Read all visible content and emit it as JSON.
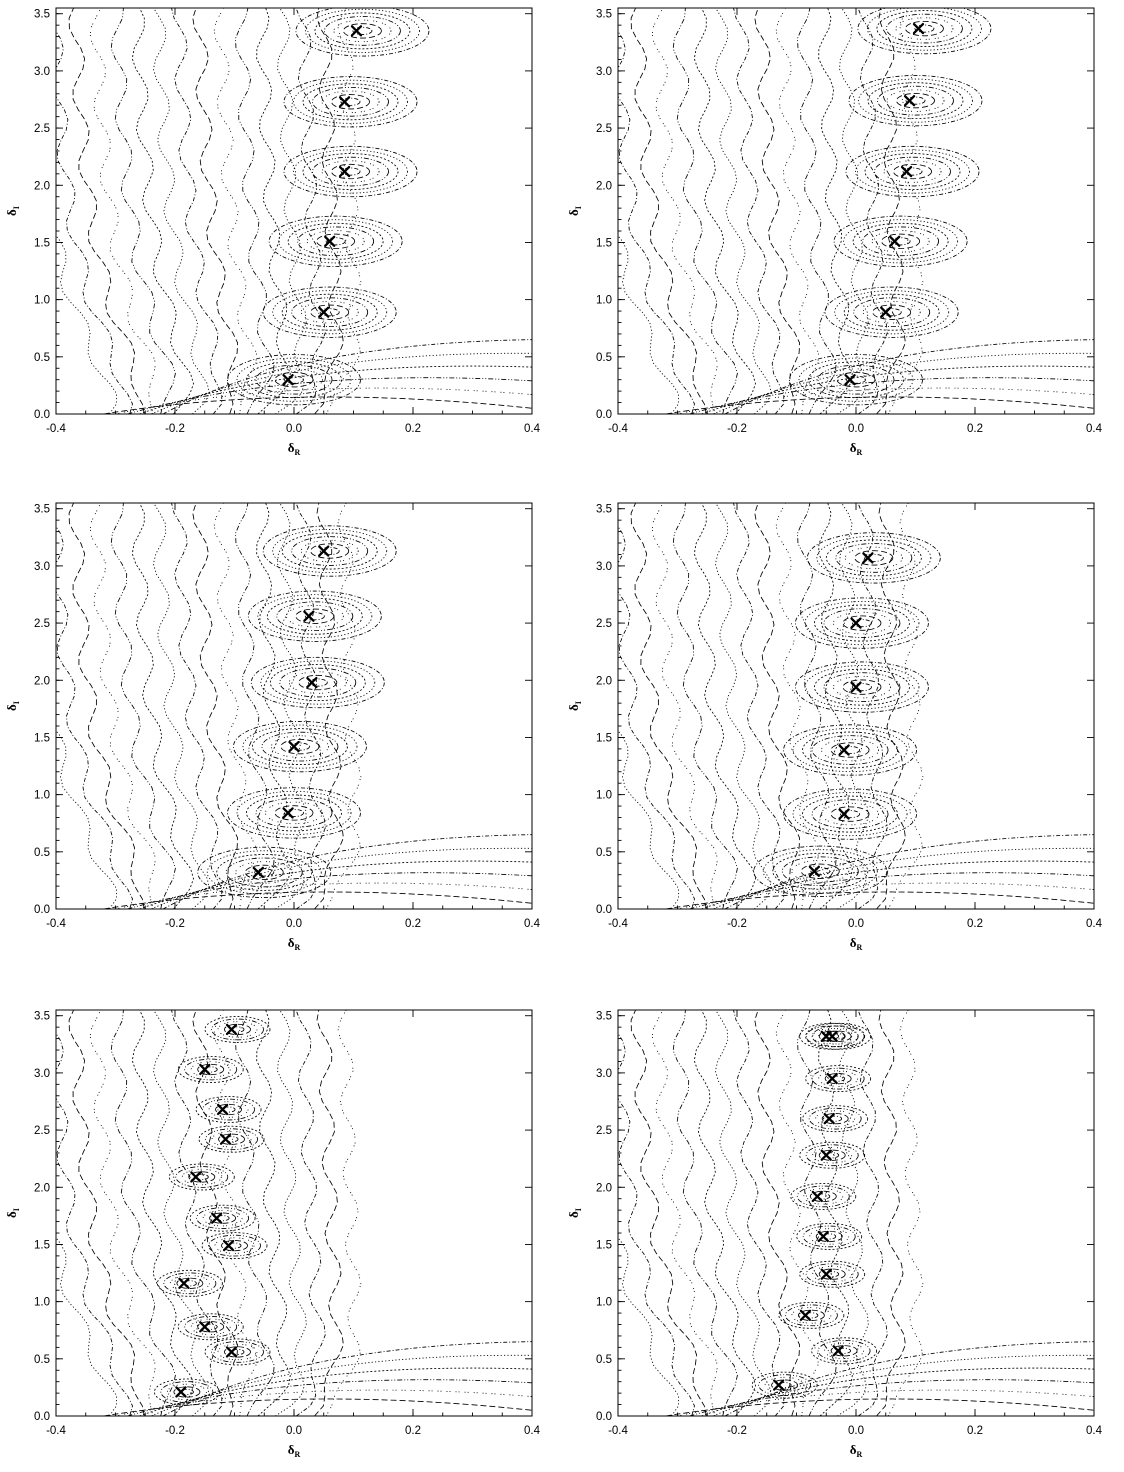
{
  "chart_data": [
    {
      "type": "scatter",
      "title": "",
      "xlabel": "δ",
      "xlabel_sub": "R",
      "ylabel": "δ",
      "ylabel_sub": "I",
      "xlim": [
        -0.4,
        0.4
      ],
      "ylim": [
        0.0,
        3.55
      ],
      "xticks": [
        "-0.4",
        "-0.2",
        "0.0",
        "0.2",
        "0.4"
      ],
      "yticks": [
        "0.0",
        "0.5",
        "1.0",
        "1.5",
        "2.0",
        "2.5",
        "3.0",
        "3.5"
      ],
      "contour_background": true,
      "x": [
        -0.01,
        0.05,
        0.06,
        0.085,
        0.085,
        0.105
      ],
      "y": [
        0.3,
        0.89,
        1.51,
        2.12,
        2.73,
        3.35
      ]
    },
    {
      "type": "scatter",
      "title": "",
      "xlabel": "δ",
      "xlabel_sub": "R",
      "ylabel": "δ",
      "ylabel_sub": "I",
      "xlim": [
        -0.4,
        0.4
      ],
      "ylim": [
        0.0,
        3.55
      ],
      "xticks": [
        "-0.4",
        "-0.2",
        "0.0",
        "0.2",
        "0.4"
      ],
      "yticks": [
        "0.0",
        "0.5",
        "1.0",
        "1.5",
        "2.0",
        "2.5",
        "3.0",
        "3.5"
      ],
      "contour_background": true,
      "x": [
        -0.01,
        0.05,
        0.065,
        0.085,
        0.09,
        0.105
      ],
      "y": [
        0.3,
        0.89,
        1.51,
        2.12,
        2.74,
        3.37
      ]
    },
    {
      "type": "scatter",
      "title": "",
      "xlabel": "δ",
      "xlabel_sub": "R",
      "ylabel": "δ",
      "ylabel_sub": "I",
      "xlim": [
        -0.4,
        0.4
      ],
      "ylim": [
        0.0,
        3.55
      ],
      "xticks": [
        "-0.4",
        "-0.2",
        "0.0",
        "0.2",
        "0.4"
      ],
      "yticks": [
        "0.0",
        "0.5",
        "1.0",
        "1.5",
        "2.0",
        "2.5",
        "3.0",
        "3.5"
      ],
      "contour_background": true,
      "x": [
        -0.06,
        -0.01,
        0.0,
        0.03,
        0.025,
        0.05
      ],
      "y": [
        0.32,
        0.84,
        1.42,
        1.98,
        2.56,
        3.13
      ]
    },
    {
      "type": "scatter",
      "title": "",
      "xlabel": "δ",
      "xlabel_sub": "R",
      "ylabel": "δ",
      "ylabel_sub": "I",
      "xlim": [
        -0.4,
        0.4
      ],
      "ylim": [
        0.0,
        3.55
      ],
      "xticks": [
        "-0.4",
        "-0.2",
        "0.0",
        "0.2",
        "0.4"
      ],
      "yticks": [
        "0.0",
        "0.5",
        "1.0",
        "1.5",
        "2.0",
        "2.5",
        "3.0",
        "3.5"
      ],
      "contour_background": true,
      "x": [
        -0.07,
        -0.02,
        -0.02,
        0.0,
        0.0,
        0.02
      ],
      "y": [
        0.33,
        0.83,
        1.39,
        1.94,
        2.5,
        3.07
      ]
    },
    {
      "type": "scatter",
      "title": "",
      "xlabel": "δ",
      "xlabel_sub": "R",
      "ylabel": "δ",
      "ylabel_sub": "I",
      "xlim": [
        -0.4,
        0.4
      ],
      "ylim": [
        0.0,
        3.55
      ],
      "xticks": [
        "-0.4",
        "-0.2",
        "0.0",
        "0.2",
        "0.4"
      ],
      "yticks": [
        "0.0",
        "0.5",
        "1.0",
        "1.5",
        "2.0",
        "2.5",
        "3.0",
        "3.5"
      ],
      "contour_background": true,
      "x": [
        -0.19,
        -0.105,
        -0.15,
        -0.185,
        -0.11,
        -0.13,
        -0.165,
        -0.115,
        -0.12,
        -0.15,
        -0.105
      ],
      "y": [
        0.21,
        0.56,
        0.78,
        1.16,
        1.49,
        1.73,
        2.09,
        2.42,
        2.68,
        3.03,
        3.38
      ]
    },
    {
      "type": "scatter",
      "title": "",
      "xlabel": "δ",
      "xlabel_sub": "R",
      "ylabel": "δ",
      "ylabel_sub": "I",
      "xlim": [
        -0.4,
        0.4
      ],
      "ylim": [
        0.0,
        3.55
      ],
      "xticks": [
        "-0.4",
        "-0.2",
        "0.0",
        "0.2",
        "0.4"
      ],
      "yticks": [
        "0.0",
        "0.5",
        "1.0",
        "1.5",
        "2.0",
        "2.5",
        "3.0",
        "3.5"
      ],
      "contour_background": true,
      "x": [
        -0.13,
        -0.03,
        -0.085,
        -0.05,
        -0.055,
        -0.065,
        -0.05,
        -0.045,
        -0.04,
        -0.05,
        -0.04
      ],
      "y": [
        0.27,
        0.57,
        0.88,
        1.24,
        1.57,
        1.92,
        2.28,
        2.6,
        2.95,
        3.32,
        3.32
      ]
    }
  ]
}
